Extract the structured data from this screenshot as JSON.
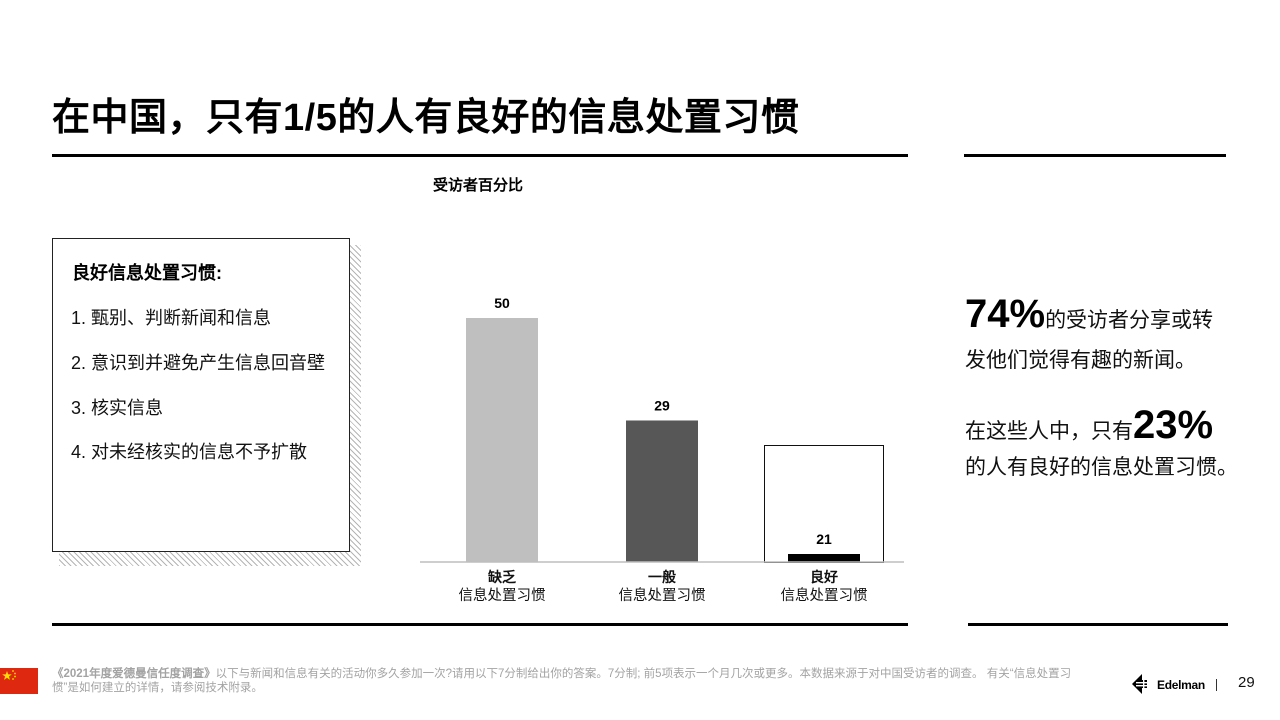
{
  "slide": {
    "title": "在中国，只有1/5的人有良好的信息处置习惯",
    "chart_subtitle": "受访者百分比"
  },
  "definition_box": {
    "heading": "良好信息处置习惯:",
    "items": [
      "1. 甄别、判断新闻和信息",
      "2. 意识到并避免产生信息回音壁",
      "3. 核实信息",
      "4. 对未经核实的信息不予扩散"
    ]
  },
  "chart_data": {
    "type": "bar",
    "title": "受访者百分比",
    "categories": [
      [
        "缺乏",
        "信息处置习惯"
      ],
      [
        "一般",
        "信息处置习惯"
      ],
      [
        "良好",
        "信息处置习惯"
      ]
    ],
    "values": [
      50,
      29,
      21
    ],
    "colors": [
      "#bfbfbf",
      "#575757",
      "#000000"
    ],
    "grid": false
  },
  "callouts": {
    "stat1_number": "74%",
    "stat1_line1_rest": "的受访者分享或转",
    "stat1_line2": "发他们觉得有趣的新闻。",
    "stat2_line1_prefix": "在这些人中，只有",
    "stat2_number": "23%",
    "stat2_line2": "的人有良好的信息处置习惯。"
  },
  "footer": {
    "source_bold": "《2021年度爱德曼信任度调查》",
    "source_text": "以下与新闻和信息有关的活动你多久参加一次?请用以下7分制给出你的答案。7分制; 前5项表示一个月几次或更多。本数据来源于对中国受访者的调查。 有关“信息处置习惯”是如何建立的详情，请参阅技术附录。",
    "brand": "Edelman",
    "page_number": "29",
    "flag_color": "#de2910",
    "flag_star_color": "#ffde00"
  }
}
